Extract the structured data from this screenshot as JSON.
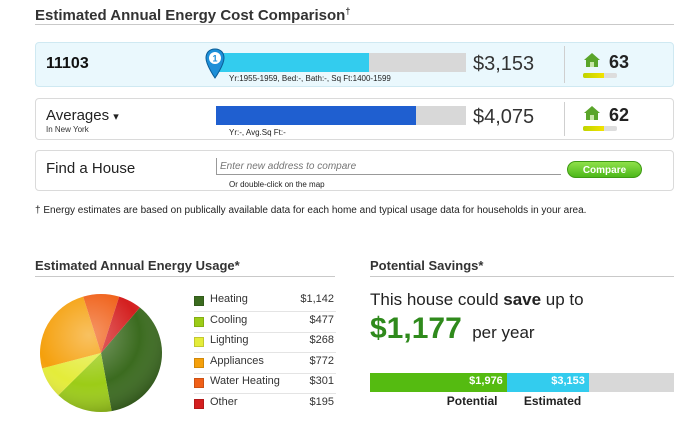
{
  "header": {
    "title": "Estimated Annual Energy Cost Comparison",
    "dagger": "†"
  },
  "rows": {
    "house": {
      "name": "11103",
      "pin_label": "1",
      "details": "Yr:1955-1959, Bed:-, Bath:-, Sq Ft:1400-1599",
      "cost": "$3,153",
      "score": "63",
      "bar_fraction": 0.61,
      "bar_color": "#33ccee",
      "score_fraction": 0.63
    },
    "averages": {
      "name": "Averages",
      "caret": "▾",
      "location": "In New York",
      "details": "Yr:-, Avg.Sq Ft:-",
      "cost": "$4,075",
      "score": "62",
      "bar_fraction": 0.8,
      "bar_color": "#1f5fd0",
      "score_fraction": 0.62
    },
    "find": {
      "name": "Find a House",
      "placeholder": "Enter new address to compare",
      "hint": "Or double-click on the map",
      "button": "Compare"
    }
  },
  "footnote": "† Energy estimates are based on publically available data for each home and typical usage data for households in your area.",
  "usage": {
    "title": "Estimated Annual Energy Usage*",
    "items": [
      {
        "label": "Heating",
        "value": "$1,142",
        "amount": 1142,
        "color": "#3b6b1f"
      },
      {
        "label": "Cooling",
        "value": "$477",
        "amount": 477,
        "color": "#9ccc17"
      },
      {
        "label": "Lighting",
        "value": "$268",
        "amount": 268,
        "color": "#e4ec3a"
      },
      {
        "label": "Appliances",
        "value": "$772",
        "amount": 772,
        "color": "#f5a00c"
      },
      {
        "label": "Water Heating",
        "value": "$301",
        "amount": 301,
        "color": "#f06018"
      },
      {
        "label": "Other",
        "value": "$195",
        "amount": 195,
        "color": "#d41f1f"
      }
    ]
  },
  "savings": {
    "title": "Potential Savings*",
    "line1_prefix": "This house could ",
    "line1_bold": "save",
    "line1_suffix": " up to",
    "amount": "$1,177",
    "per": "per year",
    "potential_value": "$1,976",
    "estimated_value": "$3,153",
    "potential_label": "Potential",
    "estimated_label": "Estimated",
    "potential_fraction": 0.45,
    "estimated_fraction": 0.72,
    "potential_color": "#55bb11",
    "estimated_color": "#33ccee"
  }
}
